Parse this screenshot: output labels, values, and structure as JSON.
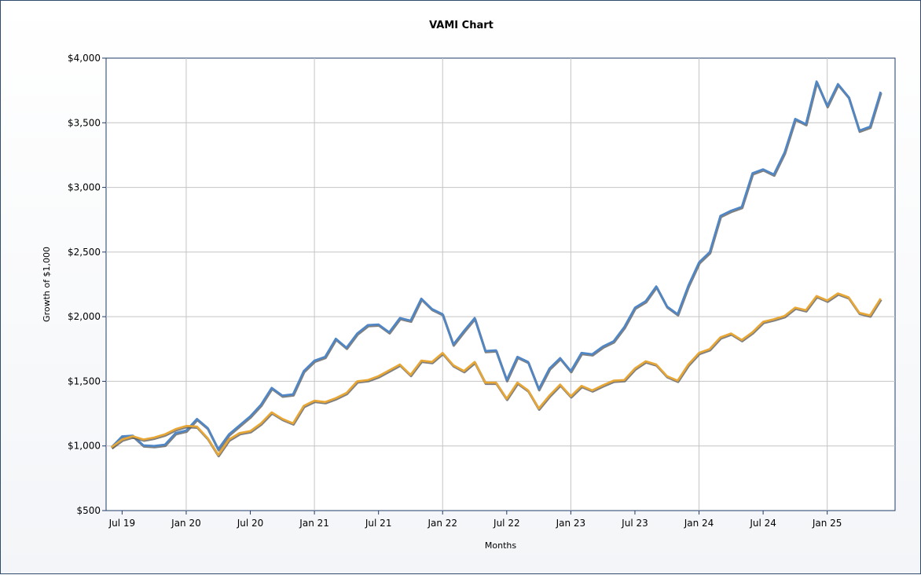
{
  "chart_data": {
    "type": "line",
    "title": "VAMI Chart",
    "xlabel": "Months",
    "ylabel": "Growth of $1,000",
    "ylim": [
      500,
      4000
    ],
    "yticks": [
      "$500",
      "$1,000",
      "$1,500",
      "$2,000",
      "$2,500",
      "$3,000",
      "$3,500",
      "$4,000"
    ],
    "ytick_values": [
      500,
      1000,
      1500,
      2000,
      2500,
      3000,
      3500,
      4000
    ],
    "xtick_labels": [
      "Jul 19",
      "Jan 20",
      "Jul 20",
      "Jan 21",
      "Jul 21",
      "Jan 22",
      "Jul 22",
      "Jan 23",
      "Jul 23",
      "Jan 24",
      "Jul 24",
      "Jan 25"
    ],
    "xtick_months": [
      "2019-07",
      "2020-01",
      "2020-07",
      "2021-01",
      "2021-07",
      "2022-01",
      "2022-07",
      "2023-01",
      "2023-07",
      "2024-01",
      "2024-07",
      "2025-01"
    ],
    "x_start": "2019-06",
    "x_end": "2025-07",
    "grid": true,
    "legend": "none",
    "series": [
      {
        "color": "#4f86c6",
        "values": [
          990,
          1075,
          1080,
          1005,
          1000,
          1010,
          1100,
          1120,
          1210,
          1140,
          975,
          1090,
          1160,
          1230,
          1320,
          1450,
          1390,
          1400,
          1580,
          1660,
          1690,
          1830,
          1760,
          1870,
          1935,
          1940,
          1880,
          1990,
          1970,
          2140,
          2060,
          2020,
          1785,
          1890,
          1990,
          1735,
          1740,
          1510,
          1690,
          1650,
          1440,
          1600,
          1680,
          1580,
          1720,
          1710,
          1770,
          1810,
          1920,
          2070,
          2120,
          2235,
          2080,
          2020,
          2240,
          2420,
          2500,
          2780,
          2820,
          2850,
          3110,
          3140,
          3100,
          3270,
          3530,
          3490,
          3820,
          3630,
          3800,
          3700,
          3440,
          3470,
          3740
        ]
      },
      {
        "color": "#e8a735",
        "values": [
          990,
          1050,
          1075,
          1050,
          1065,
          1090,
          1130,
          1155,
          1150,
          1060,
          930,
          1050,
          1100,
          1115,
          1175,
          1260,
          1210,
          1175,
          1310,
          1350,
          1340,
          1370,
          1410,
          1500,
          1510,
          1540,
          1585,
          1630,
          1550,
          1660,
          1650,
          1720,
          1625,
          1580,
          1650,
          1490,
          1490,
          1365,
          1490,
          1430,
          1290,
          1390,
          1475,
          1385,
          1465,
          1430,
          1470,
          1505,
          1510,
          1600,
          1655,
          1630,
          1540,
          1505,
          1630,
          1720,
          1750,
          1840,
          1870,
          1820,
          1880,
          1960,
          1980,
          2005,
          2070,
          2050,
          2160,
          2125,
          2180,
          2150,
          2030,
          2010,
          2140
        ]
      }
    ]
  }
}
